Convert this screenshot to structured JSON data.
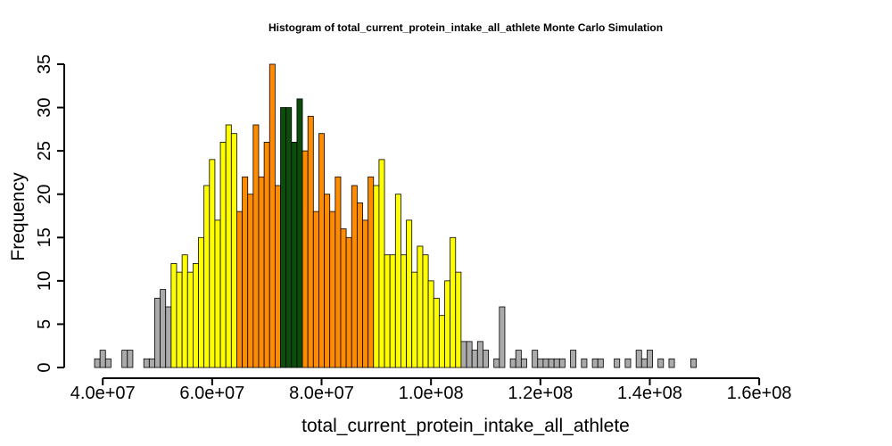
{
  "chart_data": {
    "type": "bar",
    "title": "Histogram of  total_current_protein_intake_all_athlete  Monte Carlo Simulation",
    "xlabel": "total_current_protein_intake_all_athlete",
    "ylabel": "Frequency",
    "xlim": [
      38500000,
      174000000
    ],
    "ylim": [
      0,
      35
    ],
    "bin_start": 38500000,
    "bin_width": 1000000,
    "x_ticks": [
      40000000,
      60000000,
      80000000,
      100000000,
      120000000,
      140000000,
      160000000
    ],
    "x_tick_labels": [
      "4.0e+07",
      "6.0e+07",
      "8.0e+07",
      "1.0e+08",
      "1.2e+08",
      "1.4e+08",
      "1.6e+08"
    ],
    "y_ticks": [
      0,
      5,
      10,
      15,
      20,
      25,
      30,
      35
    ],
    "y_tick_labels": [
      "0",
      "5",
      "10",
      "15",
      "20",
      "25",
      "30",
      "35"
    ],
    "colors": {
      "tail": "#aaaaaa",
      "outer": "#ffff00",
      "inner": "#ff8c00",
      "center": "#0b4d0b"
    },
    "values": [
      1,
      2,
      1,
      0,
      0,
      2,
      2,
      0,
      0,
      1,
      1,
      8,
      9,
      7,
      12,
      11,
      13,
      11,
      12,
      15,
      21,
      24,
      17,
      26,
      28,
      27,
      18,
      22,
      20,
      28,
      22,
      26,
      35,
      21,
      30,
      30,
      26,
      31,
      25,
      29,
      18,
      27,
      20,
      18,
      22,
      16,
      15,
      21,
      19,
      17,
      22,
      21,
      24,
      13,
      13,
      20,
      13,
      17,
      11,
      14,
      13,
      10,
      8,
      6,
      10,
      15,
      11,
      3,
      3,
      2,
      3,
      2,
      0,
      1,
      7,
      0,
      1,
      2,
      1,
      0,
      2,
      1,
      1,
      1,
      1,
      1,
      0,
      2,
      0,
      1,
      0,
      1,
      1,
      0,
      0,
      1,
      0,
      1,
      0,
      2,
      1,
      2,
      0,
      1,
      0,
      1,
      0,
      0,
      0,
      1,
      0,
      0,
      0,
      0,
      0,
      0,
      0,
      0,
      0,
      0,
      0,
      0,
      0,
      0,
      0,
      0,
      0,
      0,
      0,
      0,
      0,
      0,
      0,
      0,
      0
    ],
    "color_groups": [
      "tail",
      "tail",
      "tail",
      "tail",
      "tail",
      "tail",
      "tail",
      "tail",
      "tail",
      "tail",
      "tail",
      "tail",
      "tail",
      "tail",
      "outer",
      "outer",
      "outer",
      "outer",
      "outer",
      "outer",
      "outer",
      "outer",
      "outer",
      "outer",
      "outer",
      "outer",
      "inner",
      "inner",
      "inner",
      "inner",
      "inner",
      "inner",
      "inner",
      "inner",
      "center",
      "center",
      "center",
      "center",
      "inner",
      "inner",
      "inner",
      "inner",
      "inner",
      "inner",
      "inner",
      "inner",
      "inner",
      "inner",
      "inner",
      "inner",
      "inner",
      "outer",
      "outer",
      "outer",
      "outer",
      "outer",
      "outer",
      "outer",
      "outer",
      "outer",
      "outer",
      "outer",
      "outer",
      "outer",
      "outer",
      "outer",
      "outer",
      "tail",
      "tail",
      "tail",
      "tail",
      "tail",
      "tail",
      "tail",
      "tail",
      "tail",
      "tail",
      "tail",
      "tail",
      "tail",
      "tail",
      "tail",
      "tail",
      "tail",
      "tail",
      "tail",
      "tail",
      "tail",
      "tail",
      "tail",
      "tail",
      "tail",
      "tail",
      "tail",
      "tail",
      "tail",
      "tail",
      "tail",
      "tail",
      "tail",
      "tail",
      "tail",
      "tail",
      "tail",
      "tail",
      "tail",
      "tail",
      "tail",
      "tail",
      "tail",
      "tail",
      "tail",
      "tail",
      "tail",
      "tail",
      "tail",
      "tail",
      "tail",
      "tail",
      "tail",
      "tail",
      "tail",
      "tail",
      "tail",
      "tail",
      "tail",
      "tail",
      "tail",
      "tail",
      "tail",
      "tail",
      "tail",
      "tail",
      "tail",
      "tail",
      "tail"
    ]
  }
}
